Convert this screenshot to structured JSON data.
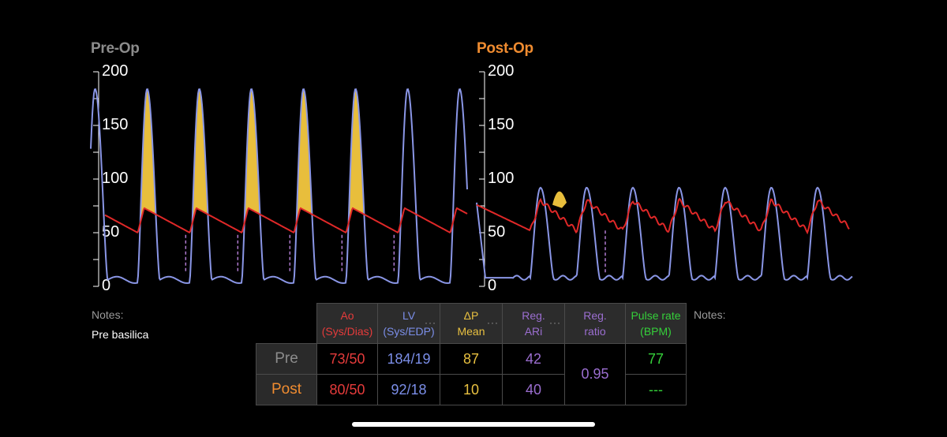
{
  "pre_panel": {
    "title": "Pre-Op",
    "title_color": "#8c8c8c",
    "y_ticks": [
      "200",
      "150",
      "100",
      "50",
      "0"
    ]
  },
  "post_panel": {
    "title": "Post-Op",
    "title_color": "#f08c30",
    "y_ticks": [
      "200",
      "150",
      "100",
      "50",
      "0"
    ]
  },
  "trace_colors": {
    "ao": "#e02828",
    "lv": "#8a96e6",
    "gradient_fill": "#e8be3c"
  },
  "notes_left": {
    "label": "Notes:",
    "text": "Pre basilica"
  },
  "notes_right": {
    "label": "Notes:"
  },
  "table": {
    "headers": [
      {
        "line1": "Ao",
        "line2": "(Sys/Dias)",
        "color": "#e53b3b",
        "menu": false
      },
      {
        "line1": "LV",
        "line2": "(Sys/EDP)",
        "color": "#7b8ee8",
        "menu": true
      },
      {
        "line1": "ΔP",
        "line2": "Mean",
        "color": "#e8c040",
        "menu": true
      },
      {
        "line1": "Reg.",
        "line2": "ARi",
        "color": "#9b6ed0",
        "menu": true
      },
      {
        "line1": "Reg.",
        "line2": "ratio",
        "color": "#9b6ed0",
        "menu": false
      },
      {
        "line1": "Pulse rate",
        "line2": "(BPM)",
        "color": "#35d03a",
        "menu": false
      }
    ],
    "menu_icon": "···",
    "rows": [
      {
        "label": "Pre",
        "label_color": "#8c8c8c",
        "ao": "73/50",
        "lv": "184/19",
        "dp": "87",
        "ari": "42",
        "pulse": "77"
      },
      {
        "label": "Post",
        "label_color": "#f08c30",
        "ao": "80/50",
        "lv": "92/18",
        "dp": "10",
        "ari": "40",
        "pulse": "---"
      }
    ],
    "reg_ratio": "0.95"
  }
}
